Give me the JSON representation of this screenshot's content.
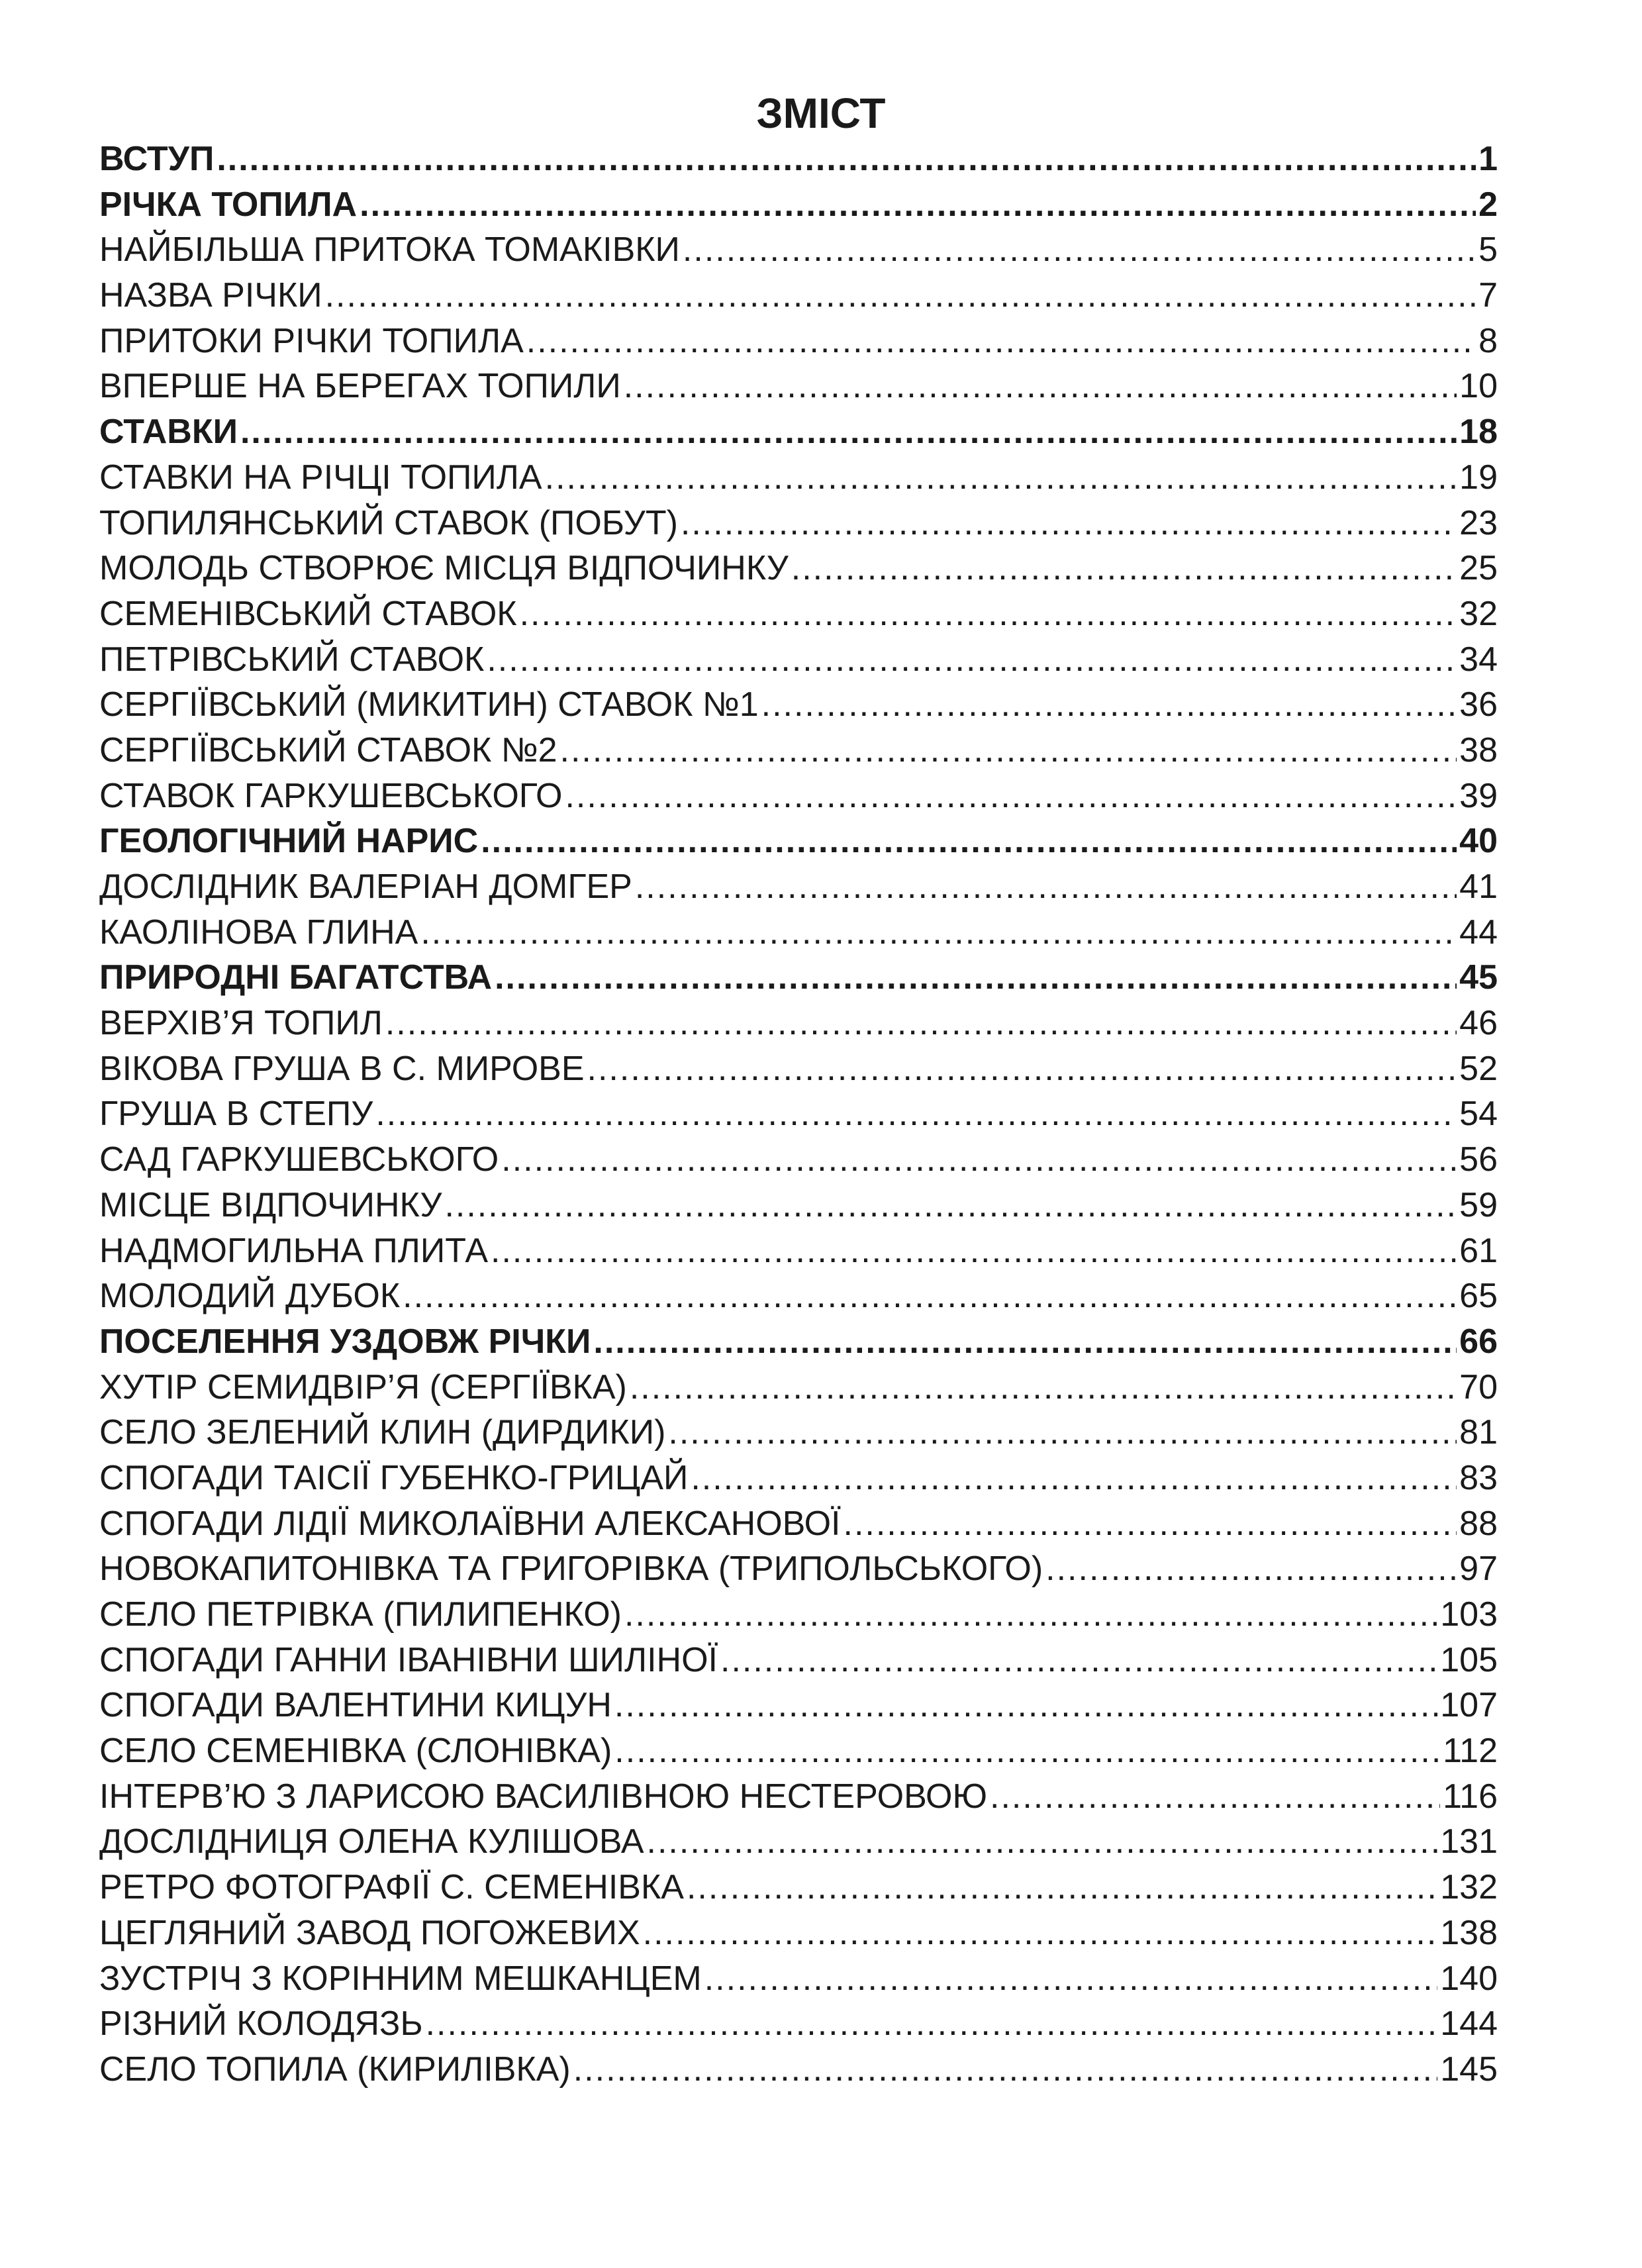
{
  "title": "ЗМІСТ",
  "entries": [
    {
      "label": "ВСТУП",
      "page": "1",
      "bold": true
    },
    {
      "label": "РІЧКА ТОПИЛА",
      "page": "2",
      "bold": true
    },
    {
      "label": "НАЙБІЛЬША ПРИТОКА ТОМАКІВКИ",
      "page": "5",
      "bold": false
    },
    {
      "label": "НАЗВА РІЧКИ",
      "page": "7",
      "bold": false
    },
    {
      "label": "ПРИТОКИ РІЧКИ ТОПИЛА",
      "page": "8",
      "bold": false
    },
    {
      "label": "ВПЕРШЕ НА БЕРЕГАХ ТОПИЛИ",
      "page": "10",
      "bold": false
    },
    {
      "label": "СТАВКИ",
      "page": "18",
      "bold": true
    },
    {
      "label": "СТАВКИ НА РІЧЦІ ТОПИЛА",
      "page": "19",
      "bold": false
    },
    {
      "label": "ТОПИЛЯНСЬКИЙ СТАВОК (ПОБУТ)",
      "page": "23",
      "bold": false
    },
    {
      "label": "МОЛОДЬ СТВОРЮЄ МІСЦЯ ВІДПОЧИНКУ",
      "page": "25",
      "bold": false
    },
    {
      "label": "СЕМЕНІВСЬКИЙ СТАВОК",
      "page": "32",
      "bold": false
    },
    {
      "label": "ПЕТРІВСЬКИЙ СТАВОК",
      "page": "34",
      "bold": false
    },
    {
      "label": "СЕРГІЇВСЬКИЙ (МИКИТИН) СТАВОК №1",
      "page": "36",
      "bold": false
    },
    {
      "label": "СЕРГІЇВСЬКИЙ СТАВОК №2",
      "page": "38",
      "bold": false
    },
    {
      "label": "СТАВОК ГАРКУШЕВСЬКОГО",
      "page": "39",
      "bold": false
    },
    {
      "label": "ГЕОЛОГІЧНИЙ НАРИС",
      "page": "40",
      "bold": true
    },
    {
      "label": "ДОСЛІДНИК ВАЛЕРІАН ДОМГЕР",
      "page": "41",
      "bold": false
    },
    {
      "label": "КАОЛІНОВА ГЛИНА",
      "page": "44",
      "bold": false
    },
    {
      "label": "ПРИРОДНІ БАГАТСТВА",
      "page": "45",
      "bold": true
    },
    {
      "label": "ВЕРХІВ’Я ТОПИЛ",
      "page": "46",
      "bold": false
    },
    {
      "label": "ВІКОВА ГРУША В С. МИРОВЕ",
      "page": "52",
      "bold": false
    },
    {
      "label": "ГРУША В СТЕПУ",
      "page": "54",
      "bold": false
    },
    {
      "label": "САД ГАРКУШЕВСЬКОГО",
      "page": "56",
      "bold": false
    },
    {
      "label": "МІСЦЕ ВІДПОЧИНКУ",
      "page": "59",
      "bold": false
    },
    {
      "label": "НАДМОГИЛЬНА ПЛИТА",
      "page": "61",
      "bold": false
    },
    {
      "label": "МОЛОДИЙ ДУБОК",
      "page": "65",
      "bold": false
    },
    {
      "label": "ПОСЕЛЕННЯ УЗДОВЖ РІЧКИ",
      "page": "66",
      "bold": true
    },
    {
      "label": "ХУТІР СЕМИДВІР’Я (СЕРГІЇВКА)",
      "page": "70",
      "bold": false
    },
    {
      "label": "СЕЛО ЗЕЛЕНИЙ КЛИН (ДИРДИКИ)",
      "page": "81",
      "bold": false
    },
    {
      "label": "СПОГАДИ ТАІСІЇ ГУБЕНКО-ГРИЦАЙ",
      "page": "83",
      "bold": false
    },
    {
      "label": "СПОГАДИ ЛІДІЇ МИКОЛАЇВНИ АЛЕКСАНОВОЇ",
      "page": "88",
      "bold": false
    },
    {
      "label": "НОВОКАПИТОНІВКА ТА ГРИГОРІВКА (ТРИПОЛЬСЬКОГО)",
      "page": "97",
      "bold": false
    },
    {
      "label": "СЕЛО ПЕТРІВКА (ПИЛИПЕНКО)",
      "page": "103",
      "bold": false
    },
    {
      "label": "СПОГАДИ ГАННИ ІВАНІВНИ ШИЛІНОЇ",
      "page": "105",
      "bold": false
    },
    {
      "label": "СПОГАДИ ВАЛЕНТИНИ КИЦУН",
      "page": "107",
      "bold": false
    },
    {
      "label": "СЕЛО СЕМЕНІВКА (СЛОНІВКА)",
      "page": "112",
      "bold": false
    },
    {
      "label": "ІНТЕРВ’Ю З ЛАРИСОЮ ВАСИЛІВНОЮ НЕСТЕРОВОЮ",
      "page": "116",
      "bold": false
    },
    {
      "label": "ДОСЛІДНИЦЯ ОЛЕНА КУЛІШОВА",
      "page": "131",
      "bold": false
    },
    {
      "label": "РЕТРО ФОТОГРАФІЇ С. СЕМЕНІВКА",
      "page": "132",
      "bold": false
    },
    {
      "label": "ЦЕГЛЯНИЙ ЗАВОД ПОГОЖЕВИХ",
      "page": "138",
      "bold": false
    },
    {
      "label": "ЗУСТРІЧ З КОРІННИМ МЕШКАНЦЕМ",
      "page": "140",
      "bold": false
    },
    {
      "label": "РІЗНИЙ КОЛОДЯЗЬ",
      "page": "144",
      "bold": false
    },
    {
      "label": "СЕЛО ТОПИЛА (КИРИЛІВКА)",
      "page": "145",
      "bold": false
    }
  ]
}
